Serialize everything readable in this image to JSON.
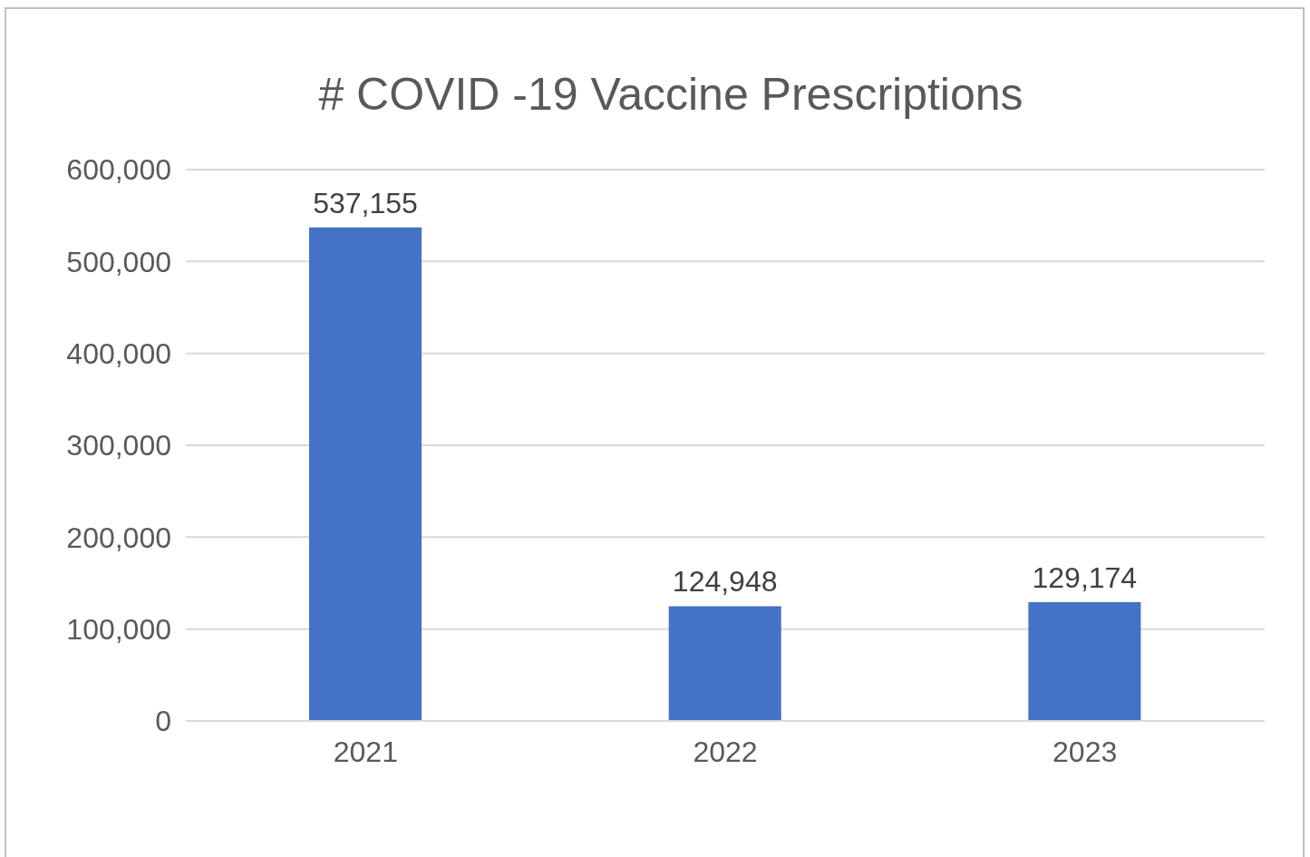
{
  "chart_data": {
    "type": "bar",
    "title": "# COVID -19 Vaccine Prescriptions",
    "categories": [
      "2021",
      "2022",
      "2023"
    ],
    "values": [
      537155,
      124948,
      129174
    ],
    "value_labels": [
      "537,155",
      "124,948",
      "129,174"
    ],
    "color": "#4472c4",
    "ylim": [
      0,
      600000
    ],
    "yticks": [
      0,
      {
        "value": 100000,
        "label": "100,000"
      },
      {
        "value": 200000,
        "label": "200,000"
      },
      {
        "value": 300000,
        "label": "300,000"
      },
      {
        "value": 400000,
        "label": "400,000"
      },
      {
        "value": 500000,
        "label": "500,000"
      },
      {
        "value": 600000,
        "label": "600,000"
      }
    ],
    "grid": "y"
  }
}
